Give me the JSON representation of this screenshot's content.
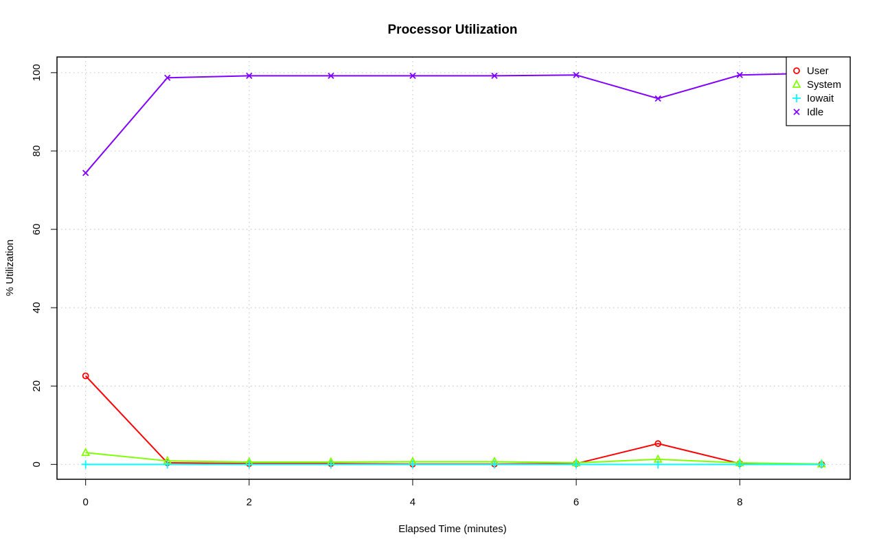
{
  "chart_data": {
    "type": "line",
    "title": "Processor Utilization",
    "xlabel": "Elapsed Time (minutes)",
    "ylabel": "% Utilization",
    "xlim": [
      -0.35,
      9.35
    ],
    "ylim": [
      -3.8,
      104
    ],
    "x_ticks": [
      0,
      2,
      4,
      6,
      8
    ],
    "y_ticks": [
      0,
      20,
      40,
      60,
      80,
      100
    ],
    "grid": true,
    "legend_position": "top-right",
    "x": [
      0,
      1,
      2,
      3,
      4,
      5,
      6,
      7,
      8,
      9
    ],
    "series": [
      {
        "name": "User",
        "color": "#ff0000",
        "marker": "circle",
        "values": [
          22.6,
          0.4,
          0.2,
          0.2,
          0.1,
          0.1,
          0.2,
          5.3,
          0.2,
          0.0
        ]
      },
      {
        "name": "System",
        "color": "#80ff00",
        "marker": "triangle",
        "values": [
          3.0,
          0.9,
          0.6,
          0.6,
          0.7,
          0.7,
          0.4,
          1.3,
          0.4,
          0.1
        ]
      },
      {
        "name": "Iowait",
        "color": "#00ffff",
        "marker": "plus",
        "values": [
          0.0,
          0.0,
          0.0,
          0.0,
          0.0,
          0.0,
          0.0,
          0.0,
          0.0,
          0.0
        ]
      },
      {
        "name": "Idle",
        "color": "#8000ff",
        "marker": "cross",
        "values": [
          74.4,
          98.7,
          99.2,
          99.2,
          99.2,
          99.2,
          99.4,
          93.4,
          99.4,
          99.9
        ]
      }
    ]
  }
}
